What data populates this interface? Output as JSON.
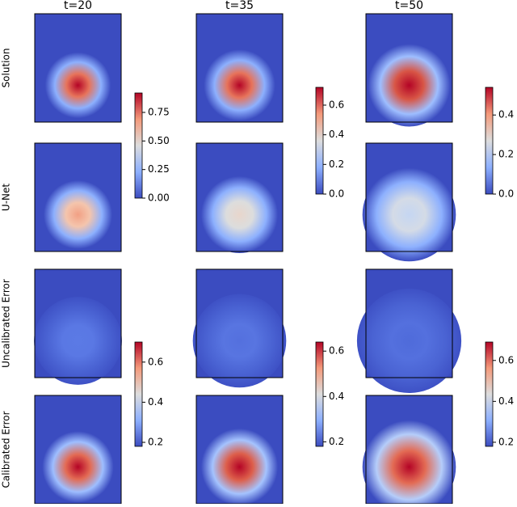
{
  "columns": [
    "t=20",
    "t=35",
    "t=50"
  ],
  "rows": [
    "Solution",
    "U-Net",
    "Uncalibrated Error",
    "Calibrated Error"
  ],
  "colorbars": [
    {
      "lim": [
        0,
        0.92
      ],
      "ticks": [
        {
          "value": 0,
          "label": "0.00"
        },
        0.25,
        {
          "value": 0.5,
          "label": "0.50"
        },
        0.75
      ]
    },
    {
      "lim": [
        0,
        0.72
      ],
      "ticks": [
        {
          "value": 0,
          "label": "0.0"
        },
        0.2,
        0.4,
        0.6
      ]
    },
    {
      "lim": [
        0,
        0.54
      ],
      "ticks": [
        {
          "value": 0,
          "label": "0.0"
        },
        0.2,
        0.4
      ]
    },
    {
      "lim": [
        0.18,
        0.7
      ],
      "ticks": [
        0.2,
        0.4,
        0.6
      ]
    },
    {
      "lim": [
        0.18,
        0.64
      ],
      "ticks": [
        0.2,
        0.4,
        0.6
      ]
    },
    {
      "lim": [
        0.18,
        0.69
      ],
      "ticks": [
        0.2,
        0.4,
        0.6
      ]
    }
  ]
}
